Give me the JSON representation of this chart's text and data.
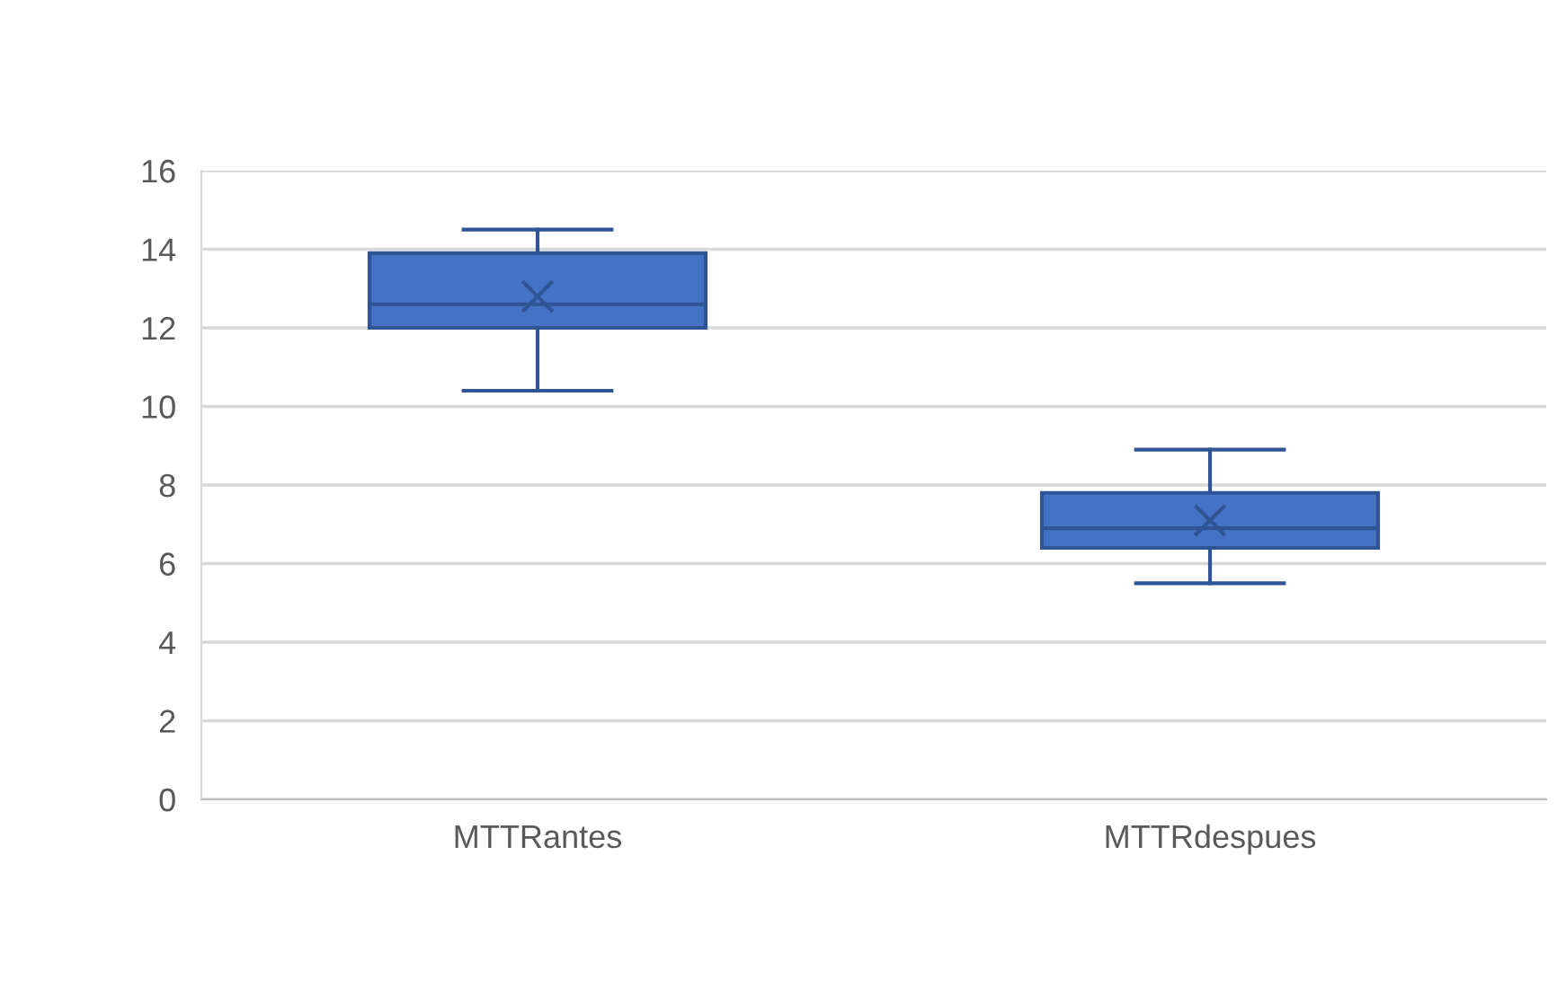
{
  "chart_data": {
    "type": "box",
    "categories": [
      "MTTRantes",
      "MTTRdespues"
    ],
    "color": "#4472c4",
    "boxes": [
      {
        "low": 10.4,
        "q1": 12.0,
        "median": 12.6,
        "q3": 13.9,
        "high": 14.5,
        "mean": 12.8
      },
      {
        "low": 5.5,
        "q1": 6.4,
        "median": 6.9,
        "q3": 7.8,
        "high": 8.9,
        "mean": 7.1
      }
    ],
    "ylim": [
      0,
      16
    ],
    "yticks": [
      0,
      2,
      4,
      6,
      8,
      10,
      12,
      14,
      16
    ],
    "grid": "y",
    "legend": false
  }
}
